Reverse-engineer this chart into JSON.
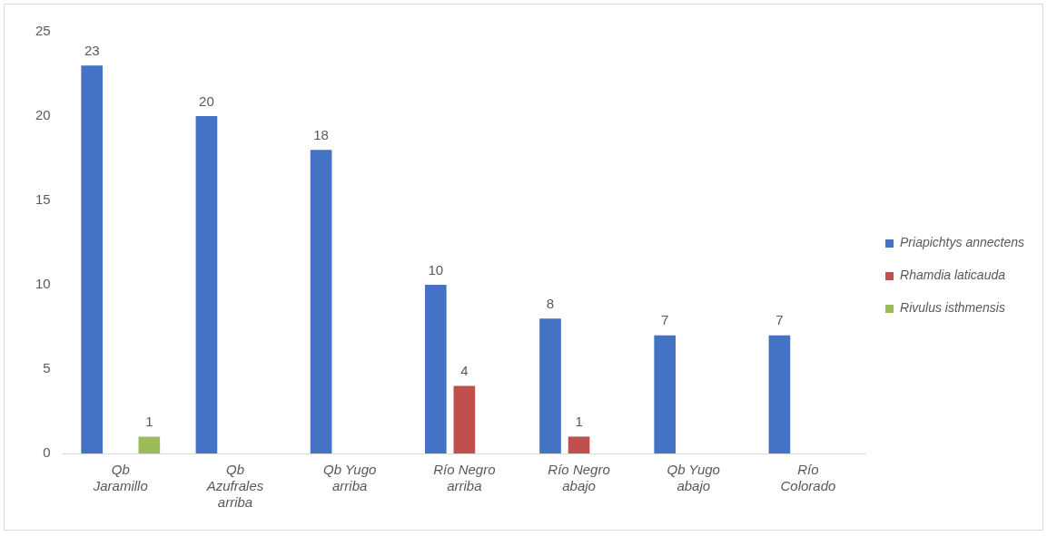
{
  "chart_data": {
    "type": "bar",
    "categories": [
      "Qb Jaramillo",
      "Qb Azufrales arriba",
      "Qb Yugo arriba",
      "Río Negro arriba",
      "Río Negro abajo",
      "Qb Yugo abajo",
      "Río Colorado"
    ],
    "series": [
      {
        "name": "Priapichtys annectens",
        "color": "#4472c4",
        "values": [
          23,
          20,
          18,
          10,
          8,
          7,
          7
        ]
      },
      {
        "name": "Rhamdia laticauda",
        "color": "#c0504d",
        "values": [
          null,
          null,
          null,
          4,
          1,
          null,
          null
        ]
      },
      {
        "name": "Rivulus isthmensis",
        "color": "#9bbb59",
        "values": [
          1,
          null,
          null,
          null,
          null,
          null,
          null
        ]
      }
    ],
    "ylim": [
      0,
      25
    ],
    "yticks": [
      0,
      5,
      10,
      15,
      20,
      25
    ],
    "grid": false,
    "legend": "right",
    "data_labels": true
  }
}
